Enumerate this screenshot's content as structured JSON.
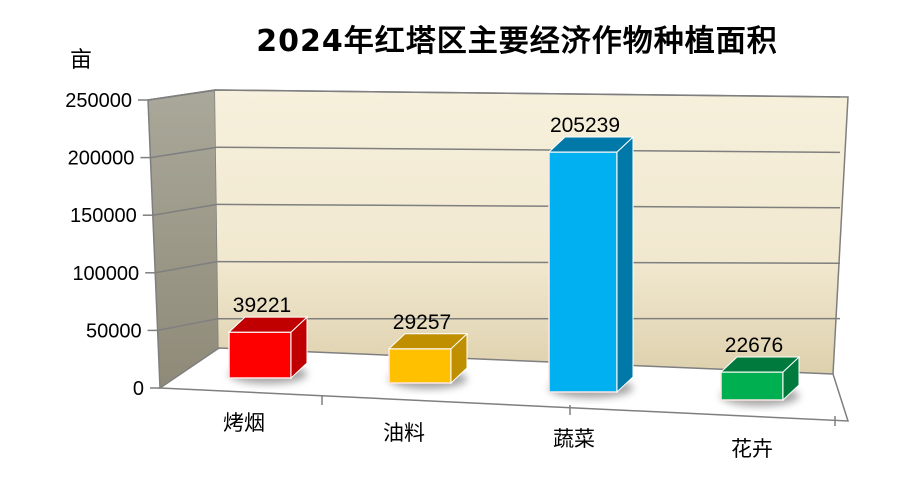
{
  "chart_data": {
    "type": "bar",
    "style": "3d-column",
    "title": "2024年红塔区主要经济作物种植面积",
    "ylabel": "亩",
    "xlabel": "",
    "categories": [
      "烤烟",
      "油料",
      "蔬菜",
      "花卉"
    ],
    "values": [
      39221,
      29257,
      205239,
      22676
    ],
    "data_labels": [
      "39221",
      "29257",
      "205239",
      "22676"
    ],
    "colors": [
      "#FF0000",
      "#FFC000",
      "#00B0F0",
      "#00B050"
    ],
    "yticks": [
      "0",
      "50000",
      "100000",
      "150000",
      "200000",
      "250000"
    ],
    "ylim": [
      0,
      250000
    ],
    "grid": true,
    "legend": "none"
  }
}
